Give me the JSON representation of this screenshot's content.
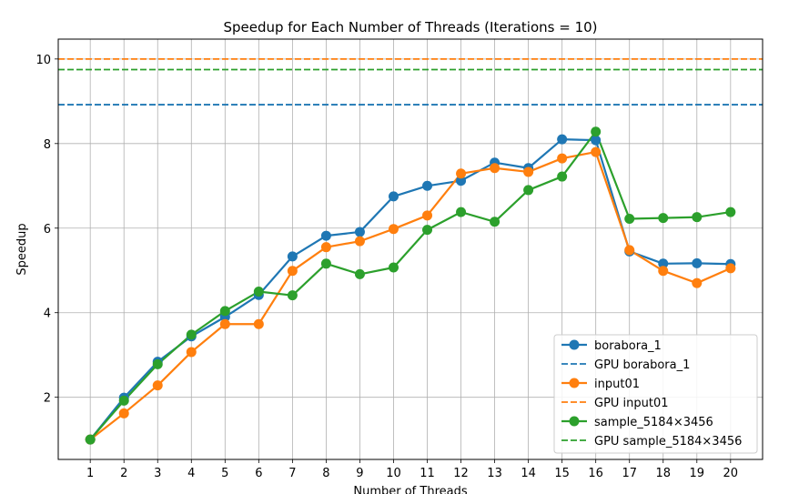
{
  "chart_data": {
    "type": "line",
    "title": "Speedup for Each Number of Threads (Iterations = 10)",
    "xlabel": "Number of Threads",
    "ylabel": "Speedup",
    "x": [
      1,
      2,
      3,
      4,
      5,
      6,
      7,
      8,
      9,
      10,
      11,
      12,
      13,
      14,
      15,
      16,
      17,
      18,
      19,
      20
    ],
    "x_ticks": [
      "1",
      "2",
      "3",
      "4",
      "5",
      "6",
      "7",
      "8",
      "9",
      "10",
      "11",
      "12",
      "13",
      "14",
      "15",
      "16",
      "17",
      "18",
      "19",
      "20"
    ],
    "y_ticks": [
      "2",
      "4",
      "6",
      "8",
      "10"
    ],
    "xlim": [
      0.05,
      20.95
    ],
    "ylim": [
      0.53,
      10.47
    ],
    "grid": true,
    "legend_position": "bottom-right",
    "series": [
      {
        "name": "borabora_1",
        "color": "#1f77b4",
        "style": "solid-marker",
        "values": [
          1.0,
          1.99,
          2.84,
          3.44,
          3.9,
          4.42,
          5.33,
          5.82,
          5.91,
          6.75,
          7.0,
          7.12,
          7.55,
          7.42,
          8.1,
          8.08,
          5.45,
          5.16,
          5.17,
          5.15
        ]
      },
      {
        "name": "GPU borabora_1",
        "color": "#1f77b4",
        "style": "dashed",
        "constant": 8.92
      },
      {
        "name": "input01",
        "color": "#ff7f0e",
        "style": "solid-marker",
        "values": [
          1.0,
          1.62,
          2.28,
          3.07,
          3.73,
          3.73,
          4.99,
          5.55,
          5.69,
          5.98,
          6.3,
          7.29,
          7.42,
          7.33,
          7.65,
          7.8,
          5.48,
          4.99,
          4.7,
          5.05
        ]
      },
      {
        "name": "GPU input01",
        "color": "#ff7f0e",
        "style": "dashed",
        "constant": 10.0
      },
      {
        "name": "sample_5184×3456",
        "color": "#2ca02c",
        "style": "solid-marker",
        "values": [
          1.0,
          1.92,
          2.78,
          3.48,
          4.04,
          4.5,
          4.41,
          5.16,
          4.91,
          5.07,
          5.96,
          6.38,
          6.15,
          6.9,
          7.22,
          8.28,
          6.22,
          6.24,
          6.26,
          6.38
        ]
      },
      {
        "name": "GPU sample_5184×3456",
        "color": "#2ca02c",
        "style": "dashed",
        "constant": 9.75
      }
    ]
  }
}
